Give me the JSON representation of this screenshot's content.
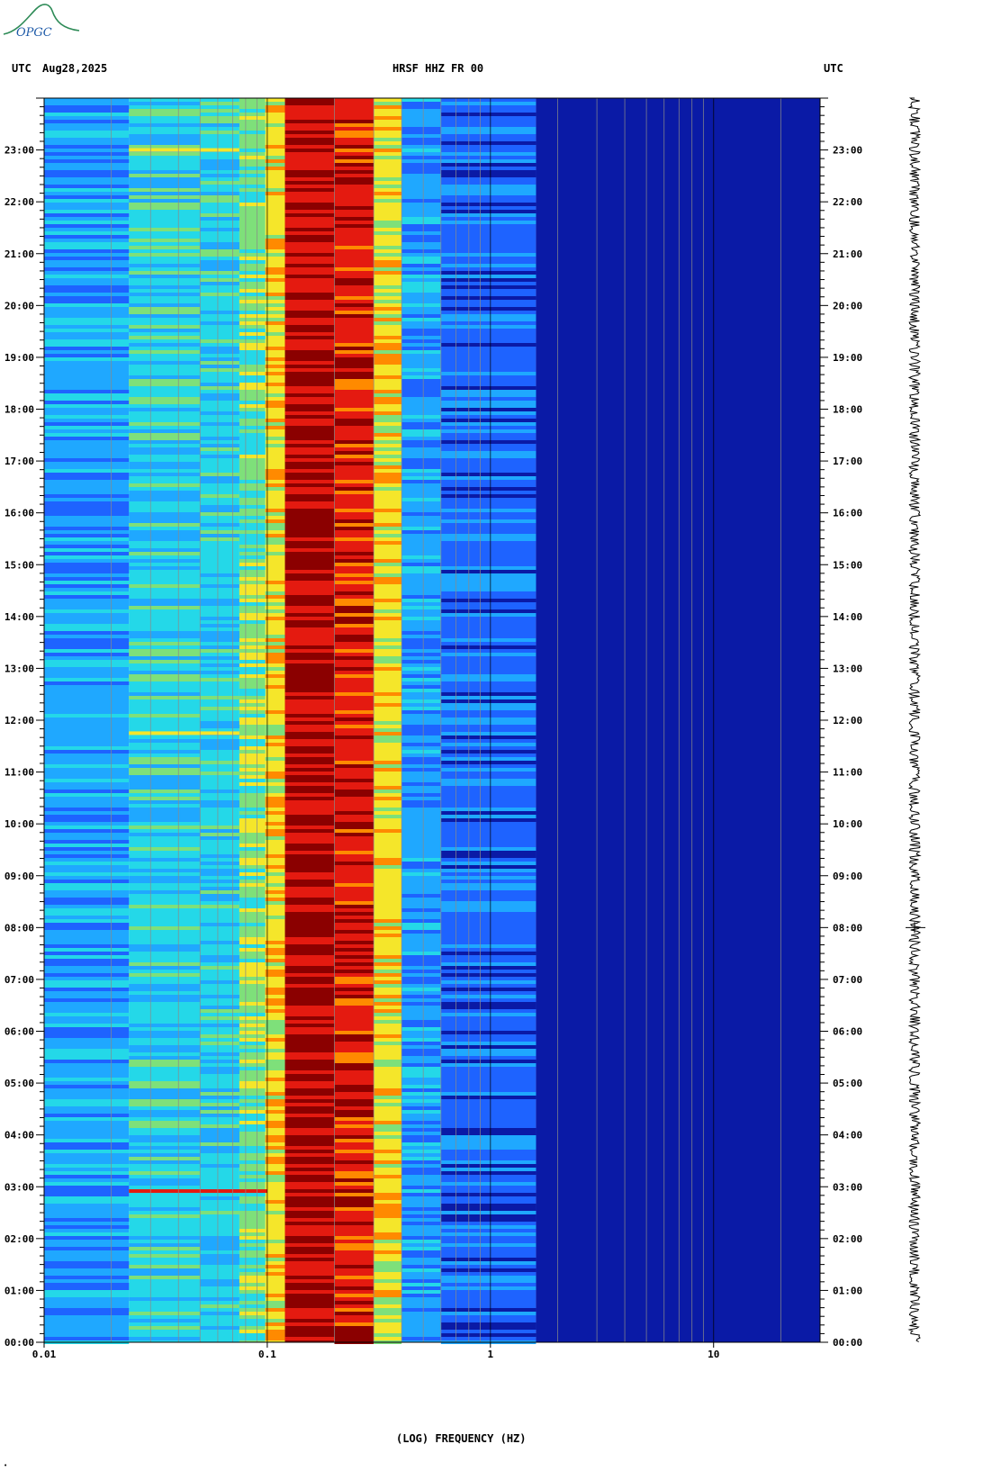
{
  "header": {
    "left_tz": "UTC",
    "date": "Aug28,2025",
    "station": "HRSF HHZ FR 00",
    "right_tz": "UTC"
  },
  "logo": {
    "text": "OPGC",
    "color": "#2e8b57"
  },
  "colors": {
    "deep_blue": "#0a1aa6",
    "blue": "#1e63ff",
    "light_blue": "#1fa8ff",
    "cyan": "#24d8e8",
    "green": "#7ee07a",
    "yellow": "#f5e62a",
    "orange": "#ff8a00",
    "red": "#e41a10",
    "dark_red": "#8b0000"
  },
  "chart_data": {
    "type": "heatmap",
    "title": "HRSF HHZ FR 00",
    "xlabel": "(LOG) FREQUENCY (HZ)",
    "x_scale": "log",
    "xlim": [
      0.01,
      30
    ],
    "x_ticks": [
      "0.01",
      "0.1",
      "1",
      "10"
    ],
    "y_ticks": [
      "00:00",
      "01:00",
      "02:00",
      "03:00",
      "04:00",
      "05:00",
      "06:00",
      "07:00",
      "08:00",
      "09:00",
      "10:00",
      "11:00",
      "12:00",
      "13:00",
      "14:00",
      "15:00",
      "16:00",
      "17:00",
      "18:00",
      "19:00",
      "20:00",
      "21:00",
      "22:00",
      "23:00"
    ],
    "frequency_bands_hz": [
      {
        "from": 0.01,
        "to": 0.024,
        "level": "light_blue"
      },
      {
        "from": 0.024,
        "to": 0.05,
        "level": "cyan"
      },
      {
        "from": 0.05,
        "to": 0.075,
        "level": "cyan"
      },
      {
        "from": 0.075,
        "to": 0.098,
        "level": "green"
      },
      {
        "from": 0.098,
        "to": 0.12,
        "level": "yellow"
      },
      {
        "from": 0.12,
        "to": 0.2,
        "level": "dark_red"
      },
      {
        "from": 0.2,
        "to": 0.3,
        "level": "red"
      },
      {
        "from": 0.3,
        "to": 0.4,
        "level": "yellow"
      },
      {
        "from": 0.4,
        "to": 0.6,
        "level": "light_blue"
      },
      {
        "from": 0.6,
        "to": 1.6,
        "level": "blue"
      },
      {
        "from": 1.6,
        "to": 30,
        "level": "deep_blue"
      }
    ],
    "events": [
      {
        "time": "02:55",
        "freq_from": 0.024,
        "freq_to": 0.1,
        "level": "red"
      },
      {
        "time": "23:00",
        "freq_from": 0.024,
        "freq_to": 0.075,
        "level": "yellow"
      },
      {
        "time": "11:45",
        "freq_from": 0.024,
        "freq_to": 0.075,
        "level": "yellow"
      }
    ]
  }
}
